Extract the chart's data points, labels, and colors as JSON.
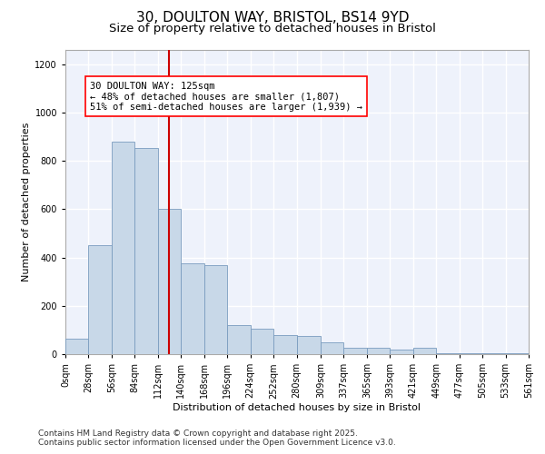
{
  "title_line1": "30, DOULTON WAY, BRISTOL, BS14 9YD",
  "title_line2": "Size of property relative to detached houses in Bristol",
  "xlabel": "Distribution of detached houses by size in Bristol",
  "ylabel": "Number of detached properties",
  "bar_color": "#c8d8e8",
  "bar_edge_color": "#7a9cbf",
  "background_color": "#eef2fb",
  "grid_color": "#ffffff",
  "vline_color": "#cc0000",
  "vline_x": 125,
  "annotation_text": "30 DOULTON WAY: 125sqm\n← 48% of detached houses are smaller (1,807)\n51% of semi-detached houses are larger (1,939) →",
  "bin_edges": [
    0,
    28,
    56,
    84,
    112,
    140,
    168,
    196,
    224,
    252,
    280,
    309,
    337,
    365,
    393,
    421,
    449,
    477,
    505,
    533,
    561
  ],
  "bin_labels": [
    "0sqm",
    "28sqm",
    "56sqm",
    "84sqm",
    "112sqm",
    "140sqm",
    "168sqm",
    "196sqm",
    "224sqm",
    "252sqm",
    "280sqm",
    "309sqm",
    "337sqm",
    "365sqm",
    "393sqm",
    "421sqm",
    "449sqm",
    "477sqm",
    "505sqm",
    "533sqm",
    "561sqm"
  ],
  "bar_heights": [
    65,
    450,
    880,
    855,
    600,
    375,
    370,
    120,
    105,
    80,
    75,
    50,
    28,
    28,
    18,
    28,
    5,
    5,
    5,
    3
  ],
  "ylim": [
    0,
    1260
  ],
  "yticks": [
    0,
    200,
    400,
    600,
    800,
    1000,
    1200
  ],
  "footnote": "Contains HM Land Registry data © Crown copyright and database right 2025.\nContains public sector information licensed under the Open Government Licence v3.0.",
  "title_fontsize": 11,
  "subtitle_fontsize": 9.5,
  "axis_label_fontsize": 8,
  "tick_fontsize": 7,
  "annotation_fontsize": 7.5,
  "footnote_fontsize": 6.5
}
